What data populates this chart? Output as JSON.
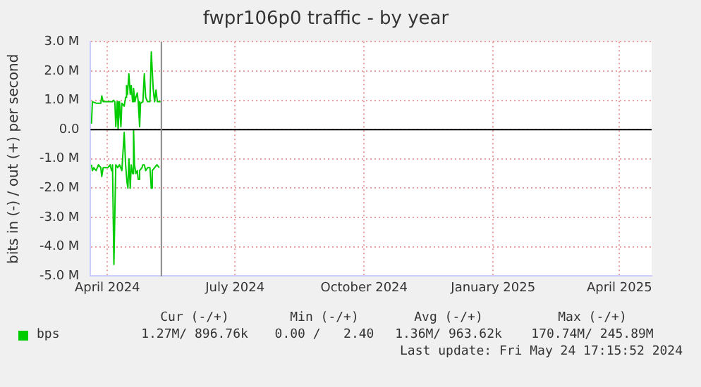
{
  "chart_data": {
    "type": "line",
    "title": "fwpr106p0 traffic - by year",
    "ylabel": "bits in (-) / out (+) per second",
    "xlim": [
      "2024-03-20",
      "2025-04-24"
    ],
    "xticks": [
      {
        "value": "2024-04-01",
        "label": "April 2024"
      },
      {
        "value": "2024-07-01",
        "label": "July 2024"
      },
      {
        "value": "2024-10-01",
        "label": "October 2024"
      },
      {
        "value": "2025-01-01",
        "label": "January 2025"
      },
      {
        "value": "2025-04-01",
        "label": "April 2025"
      }
    ],
    "ylim": [
      -5000000,
      3000000
    ],
    "yticks": [
      {
        "value": -5000000,
        "label": "-5.0 M"
      },
      {
        "value": -4000000,
        "label": "-4.0 M"
      },
      {
        "value": -3000000,
        "label": "-3.0 M"
      },
      {
        "value": -2000000,
        "label": "-2.0 M"
      },
      {
        "value": -1000000,
        "label": "-1.0 M"
      },
      {
        "value": 0,
        "label": "0.0"
      },
      {
        "value": 1000000,
        "label": "1.0 M"
      },
      {
        "value": 2000000,
        "label": "2.0 M"
      },
      {
        "value": 3000000,
        "label": "3.0 M"
      }
    ],
    "grid": true,
    "legend": "bottom left",
    "marker": "none",
    "line_style": "solid",
    "ref_lines": [
      {
        "axis": "y",
        "value": 0,
        "color": "#000000"
      },
      {
        "axis": "x",
        "value": "2024-05-09T12:00",
        "color": "#888888"
      }
    ],
    "annotations": [
      "Cur (-/+)",
      "Min (-/+)",
      "Avg (-/+)",
      "Max (-/+)",
      "1.27M/ 896.76k",
      "0.00 /   2.40",
      "1.36M/ 963.62k",
      "170.74M/ 245.89M",
      "Last update: Fri May 24 17:15:52 2024"
    ],
    "series": [
      {
        "name": "bps",
        "color": "#00cc00",
        "x": [
          "2024-03-20T16:00",
          "2024-03-21T08:00",
          "2024-03-24T00:00",
          "2024-03-27T08:00",
          "2024-03-28T00:00",
          "2024-03-29T00:00",
          "2024-04-04T16:00",
          "2024-04-05T08:00",
          "2024-04-06T08:00",
          "2024-04-07T00:00",
          "2024-04-08T00:00",
          "2024-04-08T16:00",
          "2024-04-09T16:00",
          "2024-04-10T16:00",
          "2024-04-11T08:00",
          "2024-04-13T00:00",
          "2024-04-14T00:00",
          "2024-04-14T16:00",
          "2024-04-15T08:00",
          "2024-04-16T08:00",
          "2024-04-17T08:00",
          "2024-04-18T00:00",
          "2024-04-19T00:00",
          "2024-04-19T16:00",
          "2024-04-20T16:00",
          "2024-04-21T08:00",
          "2024-04-22T08:00",
          "2024-04-23T00:00",
          "2024-04-24T00:00",
          "2024-04-24T16:00",
          "2024-04-26T08:00",
          "2024-04-27T08:00",
          "2024-04-28T08:00",
          "2024-04-29T16:00",
          "2024-05-01T08:00",
          "2024-05-02T08:00",
          "2024-05-03T16:00",
          "2024-05-04T16:00",
          "2024-05-05T16:00",
          "2024-05-06T16:00",
          "2024-05-09T00:00"
        ],
        "values": [
          200000,
          950000,
          900000,
          900000,
          1150000,
          950000,
          950000,
          1000000,
          950000,
          100000,
          950000,
          0,
          950000,
          100000,
          900000,
          800000,
          1100000,
          1500000,
          1200000,
          1900000,
          1200000,
          1500000,
          950000,
          1400000,
          950000,
          1100000,
          1250000,
          950000,
          100000,
          900000,
          950000,
          1900000,
          1100000,
          950000,
          950000,
          2650000,
          1400000,
          950000,
          1350000,
          950000,
          950000
        ]
      },
      {
        "color": "#00cc00",
        "x": [
          "2024-03-20T16:00",
          "2024-03-21T08:00",
          "2024-03-22T08:00",
          "2024-03-24T00:00",
          "2024-03-25T16:00",
          "2024-03-27T08:00",
          "2024-03-28T00:00",
          "2024-03-29T00:00",
          "2024-04-01T08:00",
          "2024-04-03T00:00",
          "2024-04-04T00:00",
          "2024-04-04T16:00",
          "2024-04-05T16:00",
          "2024-04-07T00:00",
          "2024-04-08T08:00",
          "2024-04-09T16:00",
          "2024-04-11T08:00",
          "2024-04-13T00:00",
          "2024-04-14T00:00",
          "2024-04-15T00:00",
          "2024-04-15T16:00",
          "2024-04-16T08:00",
          "2024-04-17T08:00",
          "2024-04-18T00:00",
          "2024-04-19T00:00",
          "2024-04-19T16:00",
          "2024-04-20T08:00",
          "2024-04-21T08:00",
          "2024-04-22T08:00",
          "2024-04-23T00:00",
          "2024-04-24T00:00",
          "2024-04-25T16:00",
          "2024-04-26T08:00",
          "2024-04-27T08:00",
          "2024-04-28T08:00",
          "2024-04-29T16:00",
          "2024-05-01T08:00",
          "2024-05-02T08:00",
          "2024-05-03T00:00",
          "2024-05-04T16:00",
          "2024-05-06T08:00",
          "2024-05-08T00:00"
        ],
        "values": [
          -1200000,
          -1400000,
          -1300000,
          -1400000,
          -1200000,
          -1300000,
          -1600000,
          -1300000,
          -1300000,
          -1200000,
          -1400000,
          -1200000,
          -4600000,
          -1200000,
          -1300000,
          -1200000,
          -1400000,
          -100000,
          -1200000,
          -1800000,
          -2000000,
          -1000000,
          -2000000,
          -1200000,
          -1500000,
          0,
          -1200000,
          -1500000,
          -1400000,
          -1700000,
          -1400000,
          -1300000,
          -1200000,
          -1200000,
          -1400000,
          -1300000,
          -1300000,
          -2000000,
          -1400000,
          -1300000,
          -1200000,
          -1300000
        ]
      }
    ]
  }
}
